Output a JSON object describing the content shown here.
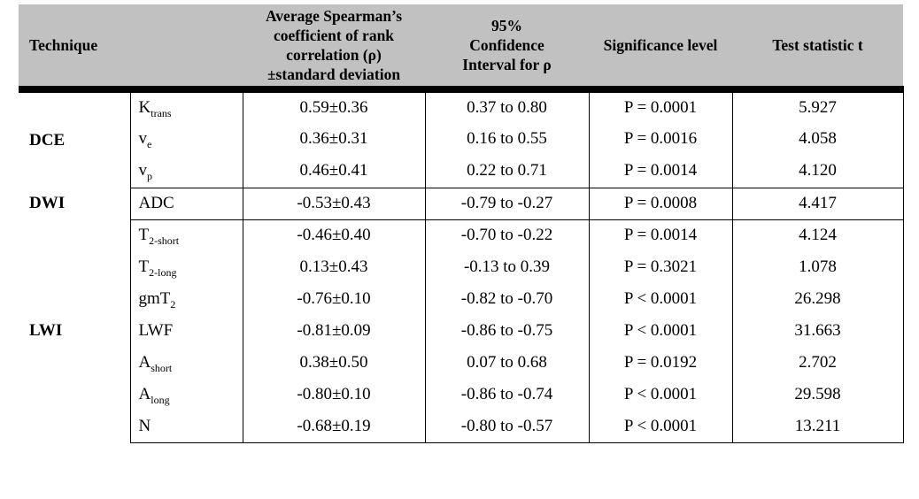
{
  "colors": {
    "header_bg": "#c1c1c1",
    "border": "#000000",
    "text": "#000000"
  },
  "table": {
    "header": {
      "technique": "Technique",
      "coefficient": "Average Spearman’s\ncoefficient of rank\ncorrelation (ρ)\n±standard deviation",
      "ci": "95%\nConfidence\nInterval for ρ",
      "significance": "Significance level",
      "test_statistic": "Test statistic t"
    },
    "groups": [
      {
        "technique": "DCE",
        "rows": [
          {
            "param_base": "K",
            "param_sub": "trans",
            "coef": "0.59±0.36",
            "ci": "0.37 to 0.80",
            "sig": "P = 0.0001",
            "t": "5.927"
          },
          {
            "param_base": "v",
            "param_sub": "e",
            "coef": "0.36±0.31",
            "ci": "0.16 to 0.55",
            "sig": "P = 0.0016",
            "t": "4.058"
          },
          {
            "param_base": "v",
            "param_sub": "p",
            "coef": "0.46±0.41",
            "ci": "0.22 to 0.71",
            "sig": "P = 0.0014",
            "t": "4.120"
          }
        ]
      },
      {
        "technique": "DWI",
        "rows": [
          {
            "param_base": "ADC",
            "param_sub": "",
            "coef": "-0.53±0.43",
            "ci": "-0.79 to -0.27",
            "sig": "P = 0.0008",
            "t": "4.417"
          }
        ]
      },
      {
        "technique": "LWI",
        "rows": [
          {
            "param_base": "T",
            "param_sub": "2-short",
            "coef": "-0.46±0.40",
            "ci": "-0.70 to -0.22",
            "sig": "P = 0.0014",
            "t": "4.124"
          },
          {
            "param_base": "T",
            "param_sub": "2-long",
            "coef": "0.13±0.43",
            "ci": "-0.13 to 0.39",
            "sig": "P = 0.3021",
            "t": "1.078"
          },
          {
            "param_base": "gmT",
            "param_sub": "2",
            "coef": "-0.76±0.10",
            "ci": "-0.82 to -0.70",
            "sig": "P < 0.0001",
            "t": "26.298"
          },
          {
            "param_base": "LWF",
            "param_sub": "",
            "coef": "-0.81±0.09",
            "ci": "-0.86 to -0.75",
            "sig": "P < 0.0001",
            "t": "31.663"
          },
          {
            "param_base": "A",
            "param_sub": "short",
            "coef": "0.38±0.50",
            "ci": "0.07 to 0.68",
            "sig": "P = 0.0192",
            "t": "2.702"
          },
          {
            "param_base": "A",
            "param_sub": "long",
            "coef": "-0.80±0.10",
            "ci": "-0.86 to -0.74",
            "sig": "P < 0.0001",
            "t": "29.598"
          },
          {
            "param_base": "N",
            "param_sub": "",
            "coef": "-0.68±0.19",
            "ci": "-0.80 to -0.57",
            "sig": "P < 0.0001",
            "t": "13.211"
          }
        ]
      }
    ]
  }
}
